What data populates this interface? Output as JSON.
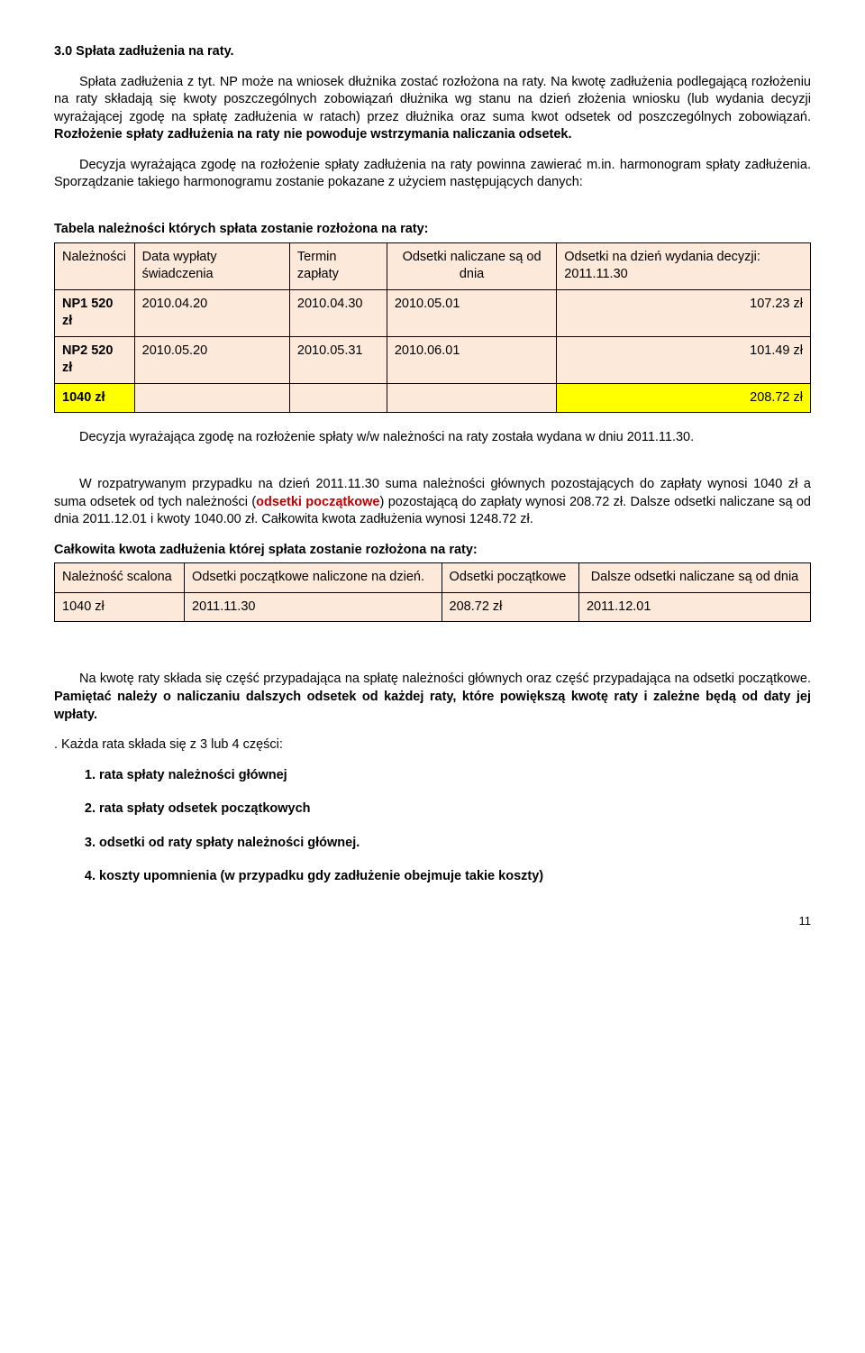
{
  "section_title": "3.0 Spłata zadłużenia na raty.",
  "para1": "Spłata zadłużenia  z tyt. NP może na wniosek dłużnika zostać rozłożona na raty. Na kwotę zadłużenia podlegającą rozłożeniu na raty składają się kwoty poszczególnych zobowiązań dłużnika wg stanu na dzień złożenia wniosku (lub wydania decyzji wyrażającej zgodę na spłatę zadłużenia w ratach) przez dłużnika oraz suma kwot odsetek od poszczególnych zobowiązań.   ",
  "para1_bold": "Rozłożenie spłaty zadłużenia na raty nie powoduje  wstrzymania naliczania odsetek.",
  "para2": "Decyzja wyrażająca zgodę na rozłożenie spłaty zadłużenia na raty powinna zawierać m.in. harmonogram  spłaty zadłużenia.  Sporządzanie takiego harmonogramu  zostanie pokazane z użyciem następujących danych:",
  "table1": {
    "title": "Tabela należności których  spłata zostanie rozłożona na raty:",
    "headers": [
      "Należności",
      "Data wypłaty świadczenia",
      "Termin zapłaty",
      "Odsetki naliczane są od dnia",
      "Odsetki  na  dzień wydania    decyzji: 2011.11.30"
    ],
    "rows": [
      [
        "NP1 520 zł",
        "2010.04.20",
        "2010.04.30",
        "2010.05.01",
        "107.23 zł"
      ],
      [
        "NP2 520 zł",
        "2010.05.20",
        "2010.05.31",
        "2010.06.01",
        "101.49 zł"
      ]
    ],
    "total_row": [
      "1040 zł",
      "",
      "",
      "",
      "208.72 zł"
    ],
    "yellow_cols": [
      0,
      4
    ]
  },
  "para3": "Decyzja wyrażająca zgodę na rozłożenie spłaty w/w należności na raty  została wydana w dniu 2011.11.30.",
  "para4_a": "W  rozpatrywanym  przypadku  na  dzień  2011.11.30  suma  należności  głównych pozostających do zapłaty wynosi 1040 zł a suma odsetek od tych należności  (",
  "para4_b": "odsetki początkowe",
  "para4_c": ") pozostającą do zapłaty wynosi 208.72 zł. Dalsze odsetki naliczane są od dnia 2011.12.01 i kwoty 1040.00 zł. Całkowita kwota zadłużenia wynosi 1248.72 zł.",
  "table2": {
    "title": "Całkowita kwota zadłużenia  której  spłata zostanie rozłożona na raty:",
    "headers": [
      "Należność scalona",
      "Odsetki  początkowe naliczone na dzień.",
      "Odsetki początkowe",
      "Dalsze odsetki naliczane są    od dnia"
    ],
    "rows": [
      [
        "1040 zł",
        "2011.11.30",
        "208.72 zł",
        "2011.12.01"
      ]
    ]
  },
  "para5_a": "Na  kwotę  raty  składa  się  część  przypadająca  na  spłatę  należności  głównych  oraz część przypadająca na odsetki początkowe. ",
  "para5_b": "Pamiętać należy o naliczaniu dalszych odsetek od każdej raty, które  powiększą kwotę raty i zależne będą od daty jej wpłaty.",
  "list_intro": ". Każda rata składa się  z 3 lub 4 części:",
  "list": {
    "items": [
      "rata spłaty należności głównej",
      "rata spłaty odsetek początkowych",
      "odsetki od raty spłaty należności głównej.",
      "koszty upomnienia (w przypadku gdy  zadłużenie obejmuje takie koszty)"
    ]
  },
  "pagenum": "11"
}
